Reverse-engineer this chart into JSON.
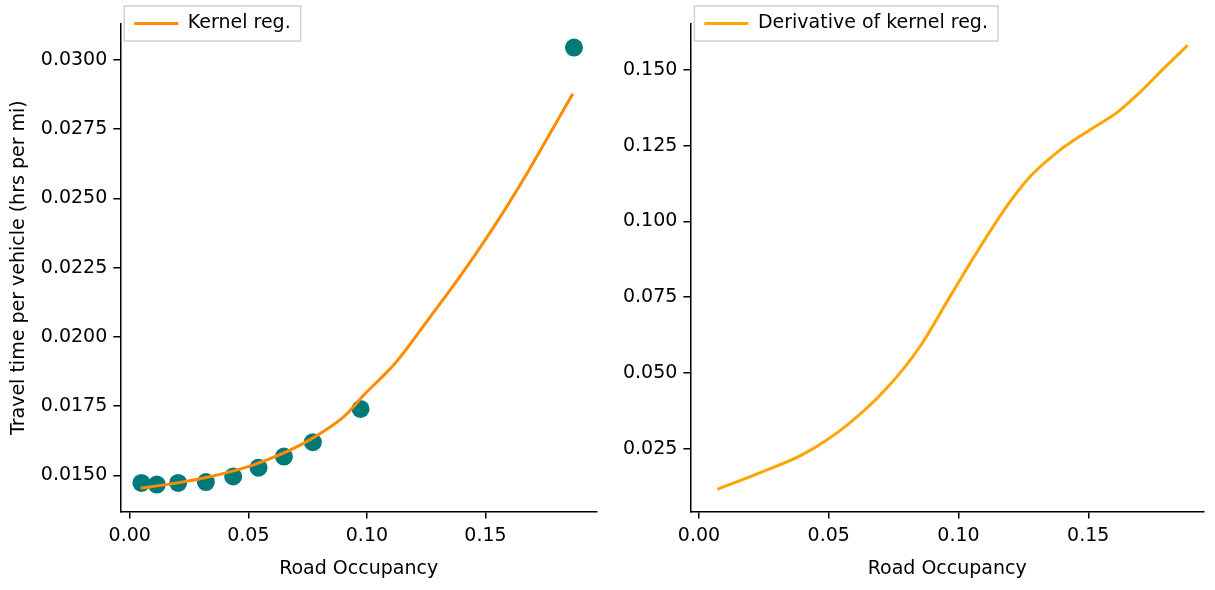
{
  "chart_data": [
    {
      "type": "scatter",
      "xlabel": "Road Occupancy",
      "ylabel": "Travel time per vehicle (hrs per mi)",
      "xlim": [
        -0.004,
        0.197
      ],
      "ylim": [
        0.0137,
        0.0313
      ],
      "xticks": [
        {
          "value": 0,
          "label": "0.00"
        },
        {
          "value": 0.05,
          "label": "0.05"
        },
        {
          "value": 0.1,
          "label": "0.10"
        },
        {
          "value": 0.15,
          "label": "0.15"
        }
      ],
      "yticks": [
        {
          "value": 0.015,
          "label": "0.0150"
        },
        {
          "value": 0.0175,
          "label": "0.0175"
        },
        {
          "value": 0.02,
          "label": "0.0200"
        },
        {
          "value": 0.0225,
          "label": "0.0225"
        },
        {
          "value": 0.025,
          "label": "0.0250"
        },
        {
          "value": 0.0275,
          "label": "0.0275"
        },
        {
          "value": 0.03,
          "label": "0.0300"
        }
      ],
      "grid": false,
      "legend": "top left",
      "series": [
        {
          "type": "scatter",
          "marker": "circle",
          "color": "#007a78",
          "x": [
            0.0049,
            0.0114,
            0.0204,
            0.0321,
            0.0436,
            0.0543,
            0.065,
            0.0772,
            0.0973,
            0.1873
          ],
          "values": [
            0.01473,
            0.01467,
            0.01473,
            0.01476,
            0.01496,
            0.01528,
            0.01568,
            0.0162,
            0.0174,
            0.03045
          ]
        },
        {
          "type": "line",
          "name": "Kernel reg.",
          "marker": "none",
          "color": "#ff8c00",
          "x": [
            0.0046,
            0.0201,
            0.0342,
            0.0482,
            0.0623,
            0.0764,
            0.0904,
            0.0989,
            0.1115,
            0.1256,
            0.1397,
            0.1537,
            0.1678,
            0.1776,
            0.1868
          ],
          "values": [
            0.01454,
            0.01473,
            0.01496,
            0.01527,
            0.01571,
            0.01631,
            0.01713,
            0.01792,
            0.01901,
            0.0206,
            0.02224,
            0.024,
            0.02595,
            0.02741,
            0.02878
          ]
        }
      ]
    },
    {
      "type": "line",
      "xlabel": "Road Occupancy",
      "xlim": [
        -0.0033,
        0.1946
      ],
      "ylim": [
        0.0043,
        0.1652
      ],
      "xticks": [
        {
          "value": 0,
          "label": "0.00"
        },
        {
          "value": 0.05,
          "label": "0.05"
        },
        {
          "value": 0.1,
          "label": "0.10"
        },
        {
          "value": 0.15,
          "label": "0.15"
        }
      ],
      "yticks": [
        {
          "value": 0.025,
          "label": "0.025"
        },
        {
          "value": 0.05,
          "label": "0.050"
        },
        {
          "value": 0.075,
          "label": "0.075"
        },
        {
          "value": 0.1,
          "label": "0.100"
        },
        {
          "value": 0.125,
          "label": "0.125"
        },
        {
          "value": 0.15,
          "label": "0.150"
        }
      ],
      "grid": false,
      "legend": "top left",
      "series": [
        {
          "name": "Derivative of kernel reg.",
          "color": "#ffa500",
          "x": [
            0.0071,
            0.0224,
            0.0404,
            0.0571,
            0.0724,
            0.0849,
            0.0974,
            0.1085,
            0.1196,
            0.1279,
            0.139,
            0.1515,
            0.1613,
            0.1696,
            0.1793,
            0.1883
          ],
          "values": [
            0.0116,
            0.0167,
            0.0233,
            0.0328,
            0.045,
            0.0584,
            0.0762,
            0.0918,
            0.1062,
            0.1151,
            0.1235,
            0.1307,
            0.1361,
            0.1424,
            0.1507,
            0.1582
          ]
        }
      ]
    }
  ]
}
